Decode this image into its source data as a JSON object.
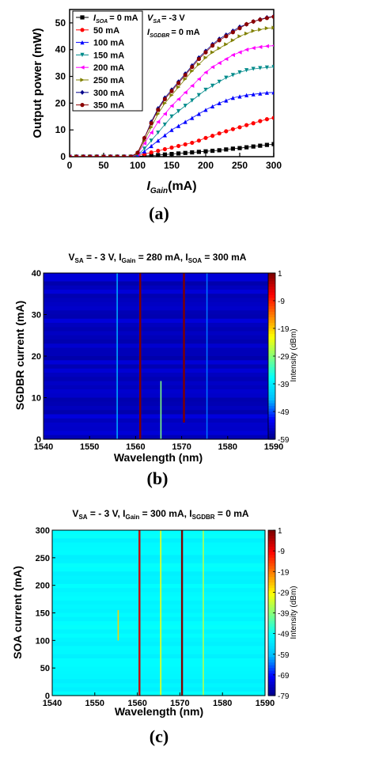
{
  "chart_data": [
    {
      "type": "line",
      "panel_label": "(a)",
      "xlabel_main": "I",
      "xlabel_sub": "Gain",
      "xlabel_unit": "(mA)",
      "ylabel": "Output power (mW)",
      "xlim": [
        0,
        300
      ],
      "ylim": [
        0,
        55
      ],
      "xticks": [
        "0",
        "50",
        "100",
        "150",
        "200",
        "250",
        "300"
      ],
      "yticks": [
        "0",
        "10",
        "20",
        "30",
        "40",
        "50"
      ],
      "legend_title_main": "I",
      "legend_title_sub": "SOA",
      "legend_placement": "top-left",
      "annotation_vsa_main": "V",
      "annotation_vsa_sub": "SA",
      "annotation_vsa_value": "= -3 V",
      "annotation_isg_main": "I",
      "annotation_isg_sub": "SGDBR",
      "annotation_isg_value": "= 0 mA",
      "x": [
        0,
        10,
        20,
        30,
        40,
        50,
        60,
        70,
        80,
        90,
        100,
        110,
        120,
        130,
        140,
        150,
        160,
        170,
        180,
        190,
        200,
        210,
        220,
        230,
        240,
        250,
        260,
        270,
        280,
        290,
        300
      ],
      "series": [
        {
          "name": "= 0 mA",
          "color": "#000000",
          "marker": "square",
          "values": [
            0,
            0,
            0,
            0,
            0,
            0,
            0,
            0,
            0,
            0,
            0.1,
            0.3,
            0.4,
            0.6,
            0.8,
            1.0,
            1.2,
            1.4,
            1.6,
            1.8,
            2.0,
            2.2,
            2.4,
            2.7,
            3.0,
            3.2,
            3.5,
            3.8,
            4.1,
            4.4,
            4.7
          ]
        },
        {
          "name": "50 mA",
          "color": "#ff0000",
          "marker": "circle",
          "values": [
            0,
            0,
            0,
            0,
            0,
            0,
            0,
            0,
            0,
            0,
            0.3,
            1.0,
            1.6,
            2.2,
            2.8,
            3.4,
            4.0,
            4.6,
            5.2,
            6.0,
            7.0,
            7.8,
            8.7,
            9.5,
            10.3,
            11.0,
            11.8,
            12.5,
            13.3,
            14.0,
            14.5
          ]
        },
        {
          "name": "100 mA",
          "color": "#0000ff",
          "marker": "triangle-up",
          "values": [
            0,
            0,
            0,
            0,
            0,
            0,
            0,
            0,
            0,
            0,
            0.5,
            2.0,
            4.0,
            6.0,
            8.0,
            10.0,
            11.5,
            13.0,
            14.5,
            16.0,
            17.5,
            18.8,
            20.0,
            21.0,
            22.0,
            22.5,
            23.0,
            23.3,
            23.6,
            23.9,
            24.0
          ]
        },
        {
          "name": "150 mA",
          "color": "#008b8b",
          "marker": "triangle-down",
          "values": [
            0,
            0,
            0,
            0,
            0,
            0,
            0,
            0,
            0,
            0,
            0.7,
            3.0,
            6.0,
            9.0,
            12.0,
            15.0,
            17.0,
            19.0,
            21.0,
            23.0,
            25.0,
            26.5,
            28.0,
            29.5,
            30.5,
            31.5,
            32.3,
            32.8,
            33.1,
            33.3,
            33.5
          ]
        },
        {
          "name": "200 mA",
          "color": "#ff00ff",
          "marker": "triangle-left",
          "values": [
            0,
            0,
            0,
            0,
            0,
            0,
            0,
            0,
            0,
            0,
            1.0,
            5.0,
            9.0,
            13.0,
            16.0,
            19.0,
            21.5,
            24.0,
            26.5,
            29.0,
            31.5,
            33.5,
            35.0,
            36.5,
            38.0,
            39.0,
            40.0,
            40.6,
            41.0,
            41.3,
            41.5
          ]
        },
        {
          "name": "250 mA",
          "color": "#808000",
          "marker": "triangle-right",
          "values": [
            0,
            0,
            0,
            0,
            0,
            0,
            0,
            0,
            0,
            0,
            1.2,
            6.0,
            11.0,
            16.0,
            20.0,
            23.0,
            26.0,
            29.0,
            32.0,
            34.5,
            37.0,
            39.0,
            40.5,
            42.0,
            43.5,
            45.0,
            46.0,
            47.0,
            47.5,
            48.0,
            48.2
          ]
        },
        {
          "name": "300 mA",
          "color": "#00008b",
          "marker": "diamond",
          "values": [
            0,
            0,
            0,
            0,
            0,
            0,
            0,
            0,
            0,
            0,
            1.5,
            7.0,
            13.0,
            18.0,
            22.0,
            25.0,
            28.0,
            31.0,
            34.0,
            37.0,
            39.5,
            42.0,
            44.0,
            45.5,
            47.0,
            48.5,
            49.5,
            50.5,
            51.3,
            52.0,
            52.5
          ]
        },
        {
          "name": "350 mA",
          "color": "#8b0000",
          "marker": "circle",
          "values": [
            0,
            0,
            0,
            0,
            0,
            0,
            0,
            0,
            0,
            0,
            1.5,
            7.0,
            12.5,
            17.5,
            21.5,
            24.5,
            27.5,
            30.5,
            33.5,
            36.5,
            39.0,
            41.5,
            43.5,
            45.0,
            46.5,
            48.0,
            49.5,
            50.5,
            51.2,
            51.8,
            52.3
          ]
        }
      ]
    },
    {
      "type": "heatmap",
      "panel_label": "(b)",
      "title_parts": [
        {
          "text": "V",
          "sub": false
        },
        {
          "text": "SA",
          "sub": true
        },
        {
          "text": " = - 3 V, I",
          "sub": false
        },
        {
          "text": "Gain",
          "sub": true
        },
        {
          "text": " = 280 mA, I",
          "sub": false
        },
        {
          "text": "SOA",
          "sub": true
        },
        {
          "text": " = 300 mA",
          "sub": false
        }
      ],
      "xlabel": "Wavelength (nm)",
      "ylabel": "SGDBR current (mA)",
      "xlim": [
        1540,
        1590
      ],
      "ylim": [
        0,
        40
      ],
      "xticks": [
        "1540",
        "1550",
        "1560",
        "1570",
        "1580",
        "1590"
      ],
      "yticks": [
        "0",
        "10",
        "20",
        "30",
        "40"
      ],
      "colorbar_label": "Intensity (dBm)",
      "colorbar_ticks": [
        "1",
        "-9",
        "-19",
        "-29",
        "-39",
        "-49",
        "-59"
      ],
      "colorbar_range": [
        -59,
        1
      ],
      "background_dbm": -55,
      "lines": [
        {
          "wavelength": 1561.0,
          "y_from": 0,
          "y_to": 40,
          "dbm": 1
        },
        {
          "wavelength": 1570.5,
          "y_from": 4,
          "y_to": 40,
          "dbm": 1
        },
        {
          "wavelength": 1565.5,
          "y_from": 0,
          "y_to": 14,
          "dbm": -29
        },
        {
          "wavelength": 1556.0,
          "y_from": 0,
          "y_to": 40,
          "dbm": -45
        },
        {
          "wavelength": 1575.5,
          "y_from": 0,
          "y_to": 40,
          "dbm": -47
        }
      ],
      "color_stops": [
        "#00007f",
        "#0000ff",
        "#00bfff",
        "#00ffff",
        "#7fff7f",
        "#ffff00",
        "#ff7f00",
        "#ff0000",
        "#7f0000"
      ]
    },
    {
      "type": "heatmap",
      "panel_label": "(c)",
      "title_parts": [
        {
          "text": "V",
          "sub": false
        },
        {
          "text": "SA",
          "sub": true
        },
        {
          "text": " = - 3 V, I",
          "sub": false
        },
        {
          "text": "Gain",
          "sub": true
        },
        {
          "text": " = 300 mA, I",
          "sub": false
        },
        {
          "text": "SGDBR",
          "sub": true
        },
        {
          "text": " = 0 mA",
          "sub": false
        }
      ],
      "xlabel": "Wavelength (nm)",
      "ylabel": "SOA current (mA)",
      "xlim": [
        1540,
        1590
      ],
      "ylim": [
        0,
        300
      ],
      "xticks": [
        "1540",
        "1550",
        "1560",
        "1570",
        "1580",
        "1590"
      ],
      "yticks": [
        "0",
        "50",
        "100",
        "150",
        "200",
        "250",
        "300"
      ],
      "colorbar_label": "Intensity (dBm)",
      "colorbar_ticks": [
        "1",
        "-9",
        "-19",
        "-29",
        "-39",
        "-49",
        "-59",
        "-69",
        "-79"
      ],
      "colorbar_range": [
        -79,
        1
      ],
      "background_dbm": -50,
      "lines": [
        {
          "wavelength": 1560.5,
          "y_from": 0,
          "y_to": 300,
          "dbm": -5
        },
        {
          "wavelength": 1570.5,
          "y_from": 0,
          "y_to": 300,
          "dbm": 1
        },
        {
          "wavelength": 1565.5,
          "y_from": 0,
          "y_to": 300,
          "dbm": -30
        },
        {
          "wavelength": 1555.5,
          "y_from": 100,
          "y_to": 155,
          "dbm": -25
        },
        {
          "wavelength": 1575.5,
          "y_from": 0,
          "y_to": 300,
          "dbm": -35
        }
      ],
      "color_stops": [
        "#00007f",
        "#0000ff",
        "#00bfff",
        "#00ffff",
        "#7fff7f",
        "#ffff00",
        "#ff7f00",
        "#ff0000",
        "#7f0000"
      ]
    }
  ]
}
